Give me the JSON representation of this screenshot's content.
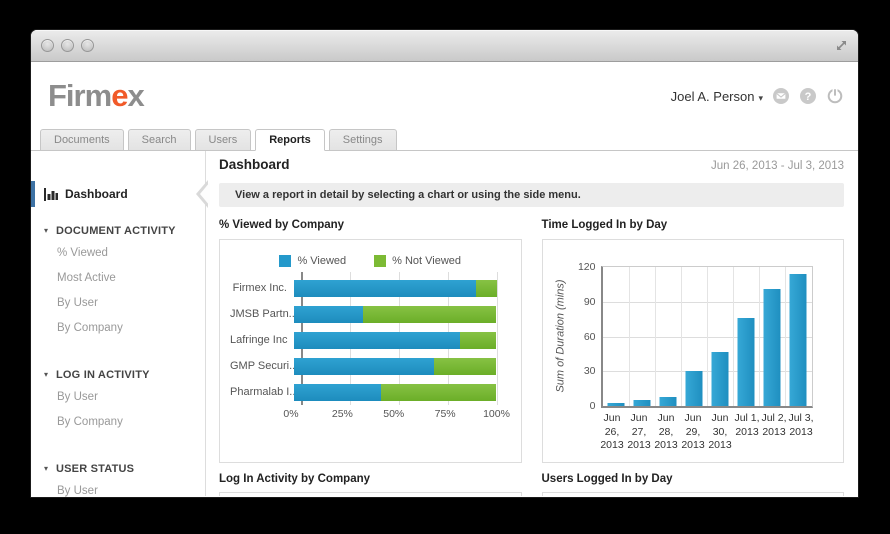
{
  "header": {
    "logo": {
      "gray1": "Firm",
      "accent": "e",
      "gray2": "x"
    },
    "user": {
      "name": "Joel A. Person"
    }
  },
  "tabs": [
    {
      "label": "Documents",
      "active": false
    },
    {
      "label": "Search",
      "active": false
    },
    {
      "label": "Users",
      "active": false
    },
    {
      "label": "Reports",
      "active": true
    },
    {
      "label": "Settings",
      "active": false
    }
  ],
  "page": {
    "title": "Dashboard",
    "date_range": "Jun 26, 2013 - Jul 3, 2013",
    "info_banner": "View a report in detail by selecting a chart or using the side menu."
  },
  "sidebar": {
    "active_item": "Dashboard",
    "sections": [
      {
        "label": "DOCUMENT ACTIVITY",
        "items": [
          "% Viewed",
          "Most Active",
          "By User",
          "By Company"
        ]
      },
      {
        "label": "LOG IN ACTIVITY",
        "items": [
          "By User",
          "By Company"
        ]
      },
      {
        "label": "USER STATUS",
        "items": [
          "By User"
        ]
      }
    ]
  },
  "charts": {
    "viewed_by_company": {
      "title": "% Viewed by Company"
    },
    "time_logged_in": {
      "title": "Time Logged In by Day"
    },
    "login_activity": {
      "title": "Log In Activity by Company"
    },
    "users_logged_in": {
      "title": "Users Logged In by Day"
    }
  },
  "colors": {
    "blue": "#2499CB",
    "green": "#7CBA34",
    "accent_orange": "#F15A29",
    "active_sidebar_border": "#3D72A4"
  },
  "chart_data": [
    {
      "type": "bar",
      "orientation": "horizontal",
      "stacked": true,
      "title": "% Viewed by Company",
      "categories": [
        "Firmex Inc.",
        "JMSB Partn...",
        "Lafringe Inc",
        "GMP Securi...",
        "Pharmalab I..."
      ],
      "series": [
        {
          "name": "% Viewed",
          "color": "#2499CB",
          "values": [
            90,
            34,
            82,
            69,
            43
          ]
        },
        {
          "name": "% Not Viewed",
          "color": "#7CBA34",
          "values": [
            10,
            66,
            18,
            31,
            57
          ]
        }
      ],
      "x_ticks": [
        "0%",
        "25%",
        "50%",
        "75%",
        "100%"
      ],
      "xlim": [
        0,
        100
      ],
      "legend_position": "top"
    },
    {
      "type": "bar",
      "orientation": "vertical",
      "title": "Time Logged In by Day",
      "categories_lines": [
        [
          "Jun",
          "26,",
          "2013"
        ],
        [
          "Jun",
          "27,",
          "2013"
        ],
        [
          "Jun",
          "28,",
          "2013"
        ],
        [
          "Jun",
          "29,",
          "2013"
        ],
        [
          "Jun",
          "30,",
          "2013"
        ],
        [
          "Jul 1,",
          "2013"
        ],
        [
          "Jul 2,",
          "2013"
        ],
        [
          "Jul 3,",
          "2013"
        ]
      ],
      "values": [
        3,
        5,
        8,
        30,
        47,
        76,
        101,
        114
      ],
      "ylabel": "Sum of Duration (mins)",
      "y_ticks": [
        0,
        30,
        60,
        90,
        120
      ],
      "ylim": [
        0,
        120
      ],
      "grid": true
    }
  ]
}
